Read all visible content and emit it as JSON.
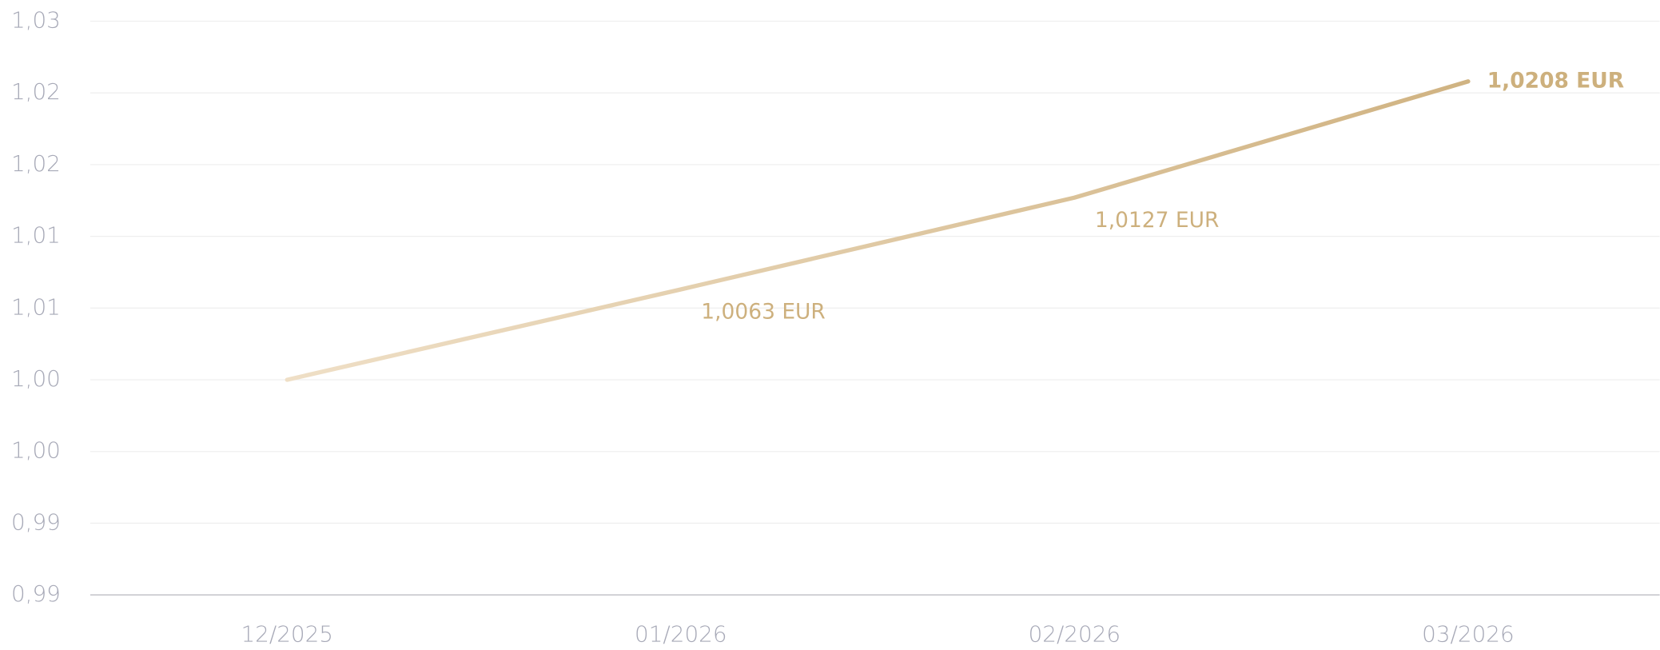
{
  "chart_data": {
    "type": "line",
    "categories": [
      "12/2025",
      "01/2026",
      "02/2026",
      "03/2026"
    ],
    "series": [
      {
        "color": "#d0b382",
        "values": [
          1.0,
          1.0063,
          1.0127,
          1.0208
        ],
        "value_labels": [
          null,
          "1,0063 EUR",
          "1,0127 EUR",
          "1,0208 EUR"
        ]
      }
    ],
    "ylim": [
      0.985,
      1.025
    ],
    "yticks": [
      {
        "value": 0.985,
        "label": "0,99"
      },
      {
        "value": 0.99,
        "label": "0,99"
      },
      {
        "value": 0.995,
        "label": "1,00"
      },
      {
        "value": 1.0,
        "label": "1,00"
      },
      {
        "value": 1.005,
        "label": "1,01"
      },
      {
        "value": 1.01,
        "label": "1,01"
      },
      {
        "value": 1.015,
        "label": "1,02"
      },
      {
        "value": 1.02,
        "label": "1,02"
      },
      {
        "value": 1.025,
        "label": "1,03"
      }
    ],
    "grid": true
  }
}
